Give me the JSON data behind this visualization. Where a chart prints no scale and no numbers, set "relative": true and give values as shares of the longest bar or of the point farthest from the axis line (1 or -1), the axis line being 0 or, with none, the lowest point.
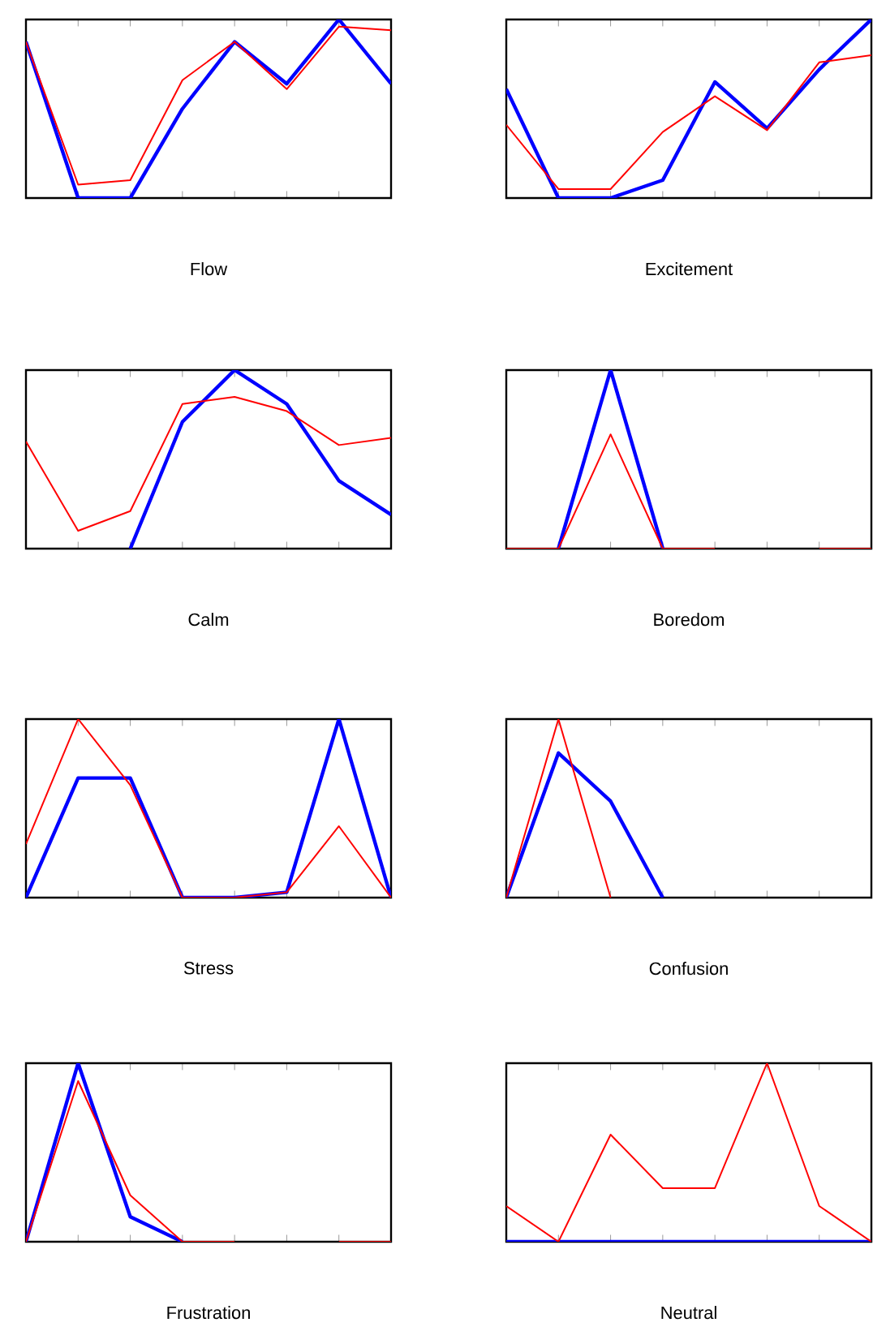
{
  "chart_data": [
    {
      "type": "line",
      "title": "Flow",
      "relative": true,
      "categories": [
        null,
        null,
        null,
        null,
        null,
        null,
        null,
        null
      ],
      "series": [
        {
          "color": "#0000ff",
          "values": [
            0.875,
            0,
            0,
            0.5,
            0.875,
            0.64,
            1,
            0.64
          ]
        },
        {
          "color": "#ff0000",
          "values": [
            0.875,
            0.075,
            0.1,
            0.66,
            0.875,
            0.61,
            0.96,
            0.94
          ]
        }
      ]
    },
    {
      "type": "line",
      "title": "Excitement",
      "relative": true,
      "categories": [
        null,
        null,
        null,
        null,
        null,
        null,
        null,
        null
      ],
      "series": [
        {
          "color": "#0000ff",
          "values": [
            0.61,
            0,
            0,
            0.1,
            0.65,
            0.39,
            0.72,
            1
          ]
        },
        {
          "color": "#ff0000",
          "values": [
            0.41,
            0.05,
            0.05,
            0.37,
            0.57,
            0.38,
            0.76,
            0.8
          ]
        }
      ]
    },
    {
      "type": "line",
      "title": "Calm",
      "relative": true,
      "categories": [
        null,
        null,
        null,
        null,
        null,
        null,
        null,
        null
      ],
      "series": [
        {
          "color": "#0000ff",
          "values": [
            null,
            null,
            0,
            0.71,
            1,
            0.81,
            0.38,
            0.19
          ]
        },
        {
          "color": "#ff0000",
          "values": [
            0.6,
            0.1,
            0.21,
            0.81,
            0.85,
            0.77,
            0.58,
            0.62
          ]
        }
      ]
    },
    {
      "type": "line",
      "title": "Boredom",
      "relative": true,
      "categories": [
        null,
        null,
        null,
        null,
        null,
        null,
        null,
        null
      ],
      "series": [
        {
          "color": "#0000ff",
          "values": [
            null,
            0,
            1,
            0,
            null,
            null,
            null,
            null
          ]
        },
        {
          "color": "#ff0000",
          "values": [
            0,
            0,
            0.64,
            0,
            0,
            null,
            0,
            0
          ]
        }
      ]
    },
    {
      "type": "line",
      "title": "Stress",
      "relative": true,
      "categories": [
        null,
        null,
        null,
        null,
        null,
        null,
        null,
        null
      ],
      "series": [
        {
          "color": "#0000ff",
          "values": [
            0,
            0.67,
            0.67,
            0,
            0,
            0.03,
            1,
            0
          ]
        },
        {
          "color": "#ff0000",
          "values": [
            0.3,
            1,
            0.63,
            0,
            0,
            0.03,
            0.4,
            0
          ]
        }
      ]
    },
    {
      "type": "line",
      "title": "Confusion",
      "relative": true,
      "categories": [
        null,
        null,
        null,
        null,
        null,
        null,
        null,
        null
      ],
      "series": [
        {
          "color": "#0000ff",
          "values": [
            0,
            0.81,
            0.54,
            0,
            null,
            null,
            null,
            null
          ]
        },
        {
          "color": "#ff0000",
          "values": [
            0,
            1,
            0,
            null,
            null,
            null,
            null,
            null
          ]
        }
      ]
    },
    {
      "type": "line",
      "title": "Frustration",
      "relative": true,
      "categories": [
        null,
        null,
        null,
        null,
        null,
        null,
        null,
        null
      ],
      "series": [
        {
          "color": "#0000ff",
          "values": [
            0,
            1,
            0.14,
            0,
            null,
            null,
            null,
            null
          ]
        },
        {
          "color": "#ff0000",
          "values": [
            0,
            0.9,
            0.26,
            0,
            0,
            null,
            0,
            0
          ]
        }
      ]
    },
    {
      "type": "line",
      "title": "Neutral",
      "relative": true,
      "categories": [
        null,
        null,
        null,
        null,
        null,
        null,
        null,
        null
      ],
      "series": [
        {
          "color": "#0000ff",
          "values": [
            0,
            0,
            0,
            0,
            0,
            0,
            0,
            0
          ]
        },
        {
          "color": "#ff0000",
          "values": [
            0.2,
            0,
            0.6,
            0.3,
            0.3,
            1,
            0.2,
            0
          ]
        }
      ]
    }
  ]
}
